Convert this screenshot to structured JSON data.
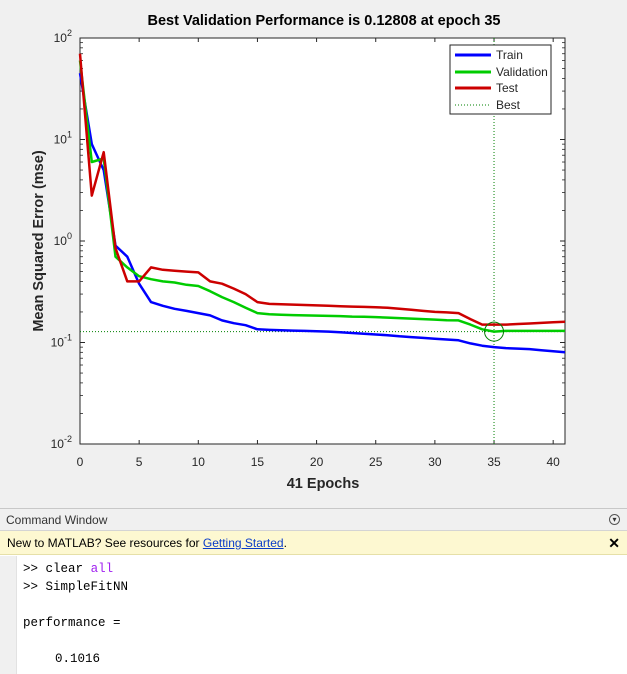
{
  "figure": {
    "title": "Best Validation Performance is 0.12808 at epoch 35",
    "xlabel": "41 Epochs",
    "ylabel": "Mean Squared Error  (mse)",
    "x_ticks": [
      "0",
      "5",
      "10",
      "15",
      "20",
      "25",
      "30",
      "35",
      "40"
    ],
    "y_tick_base": "10",
    "y_tick_exps": [
      "2",
      "1",
      "0",
      "-1",
      "-2"
    ],
    "legend": [
      "Train",
      "Validation",
      "Test",
      "Best"
    ]
  },
  "chart_data": {
    "type": "line",
    "title": "Best Validation Performance is 0.12808 at epoch 35",
    "xlabel": "41 Epochs",
    "ylabel": "Mean Squared Error  (mse)",
    "xlim": [
      0,
      41
    ],
    "ylim": [
      0.01,
      100
    ],
    "yscale": "log",
    "grid": true,
    "legend_position": "top-right",
    "best": {
      "epoch": 35,
      "value": 0.12808
    },
    "series": [
      {
        "name": "Train",
        "color": "#0000ff",
        "x": [
          0,
          1,
          2,
          3,
          4,
          5,
          6,
          7,
          8,
          9,
          10,
          11,
          12,
          13,
          14,
          15,
          16,
          17,
          18,
          19,
          20,
          21,
          22,
          23,
          24,
          25,
          26,
          27,
          28,
          29,
          30,
          31,
          32,
          33,
          34,
          35,
          36,
          37,
          38,
          39,
          40,
          41
        ],
        "y": [
          45,
          9,
          5,
          0.9,
          0.7,
          0.38,
          0.25,
          0.23,
          0.215,
          0.205,
          0.195,
          0.185,
          0.165,
          0.155,
          0.148,
          0.135,
          0.133,
          0.132,
          0.131,
          0.13,
          0.129,
          0.128,
          0.126,
          0.124,
          0.122,
          0.12,
          0.118,
          0.115,
          0.113,
          0.111,
          0.109,
          0.107,
          0.105,
          0.098,
          0.093,
          0.09,
          0.088,
          0.087,
          0.086,
          0.084,
          0.082,
          0.08
        ]
      },
      {
        "name": "Validation",
        "color": "#00cc00",
        "x": [
          0,
          1,
          2,
          3,
          4,
          5,
          6,
          7,
          8,
          9,
          10,
          11,
          12,
          13,
          14,
          15,
          16,
          17,
          18,
          19,
          20,
          21,
          22,
          23,
          24,
          25,
          26,
          27,
          28,
          29,
          30,
          31,
          32,
          33,
          34,
          35,
          36,
          37,
          38,
          39,
          40,
          41
        ],
        "y": [
          60,
          6,
          6.5,
          0.7,
          0.55,
          0.45,
          0.42,
          0.4,
          0.39,
          0.37,
          0.36,
          0.32,
          0.28,
          0.25,
          0.22,
          0.195,
          0.19,
          0.188,
          0.186,
          0.185,
          0.184,
          0.183,
          0.182,
          0.18,
          0.179,
          0.178,
          0.176,
          0.174,
          0.172,
          0.17,
          0.168,
          0.166,
          0.165,
          0.15,
          0.135,
          0.128,
          0.13,
          0.13,
          0.13,
          0.13,
          0.13,
          0.13
        ]
      },
      {
        "name": "Test",
        "color": "#cc0000",
        "x": [
          0,
          1,
          2,
          3,
          4,
          5,
          6,
          7,
          8,
          9,
          10,
          11,
          12,
          13,
          14,
          15,
          16,
          17,
          18,
          19,
          20,
          21,
          22,
          23,
          24,
          25,
          26,
          27,
          28,
          29,
          30,
          31,
          32,
          33,
          34,
          35,
          36,
          37,
          38,
          39,
          40,
          41
        ],
        "y": [
          70,
          2.8,
          7.5,
          0.85,
          0.4,
          0.4,
          0.55,
          0.52,
          0.51,
          0.5,
          0.49,
          0.4,
          0.38,
          0.34,
          0.3,
          0.25,
          0.24,
          0.238,
          0.236,
          0.234,
          0.232,
          0.23,
          0.228,
          0.226,
          0.224,
          0.222,
          0.22,
          0.215,
          0.21,
          0.205,
          0.2,
          0.198,
          0.195,
          0.17,
          0.15,
          0.15,
          0.15,
          0.152,
          0.154,
          0.156,
          0.158,
          0.16
        ]
      }
    ]
  },
  "command_window": {
    "title": "Command Window",
    "notice_text": "New to MATLAB? See resources for ",
    "notice_link": "Getting Started",
    "notice_tail": ".",
    "prompt": ">>",
    "cmd1_word": "clear",
    "cmd1_arg": "all",
    "cmd2": "SimpleFitNN",
    "output_label": "performance =",
    "output_value": "0.1016"
  }
}
